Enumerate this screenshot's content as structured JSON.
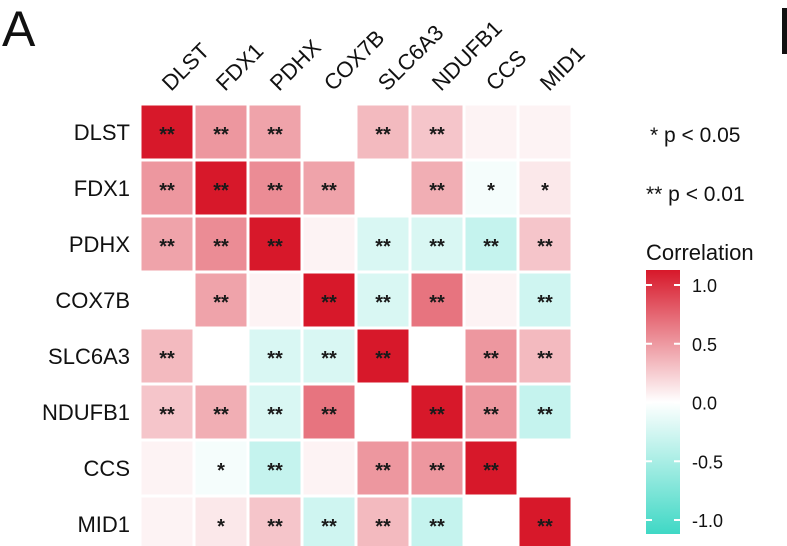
{
  "panel_label": "A",
  "chart_data": {
    "type": "heatmap",
    "title": "",
    "rows": [
      "DLST",
      "FDX1",
      "PDHX",
      "COX7B",
      "SLC6A3",
      "NDUFB1",
      "CCS",
      "MID1"
    ],
    "columns": [
      "DLST",
      "FDX1",
      "PDHX",
      "COX7B",
      "SLC6A3",
      "NDUFB1",
      "CCS",
      "MID1"
    ],
    "values": [
      [
        1.0,
        0.45,
        0.4,
        0.0,
        0.3,
        0.25,
        0.05,
        0.05
      ],
      [
        0.45,
        1.0,
        0.5,
        0.4,
        0.0,
        0.35,
        -0.05,
        0.1
      ],
      [
        0.4,
        0.5,
        1.0,
        0.05,
        -0.2,
        -0.2,
        -0.3,
        0.25
      ],
      [
        0.0,
        0.4,
        0.05,
        1.0,
        -0.2,
        0.6,
        0.05,
        -0.25
      ],
      [
        0.3,
        0.0,
        -0.2,
        -0.2,
        1.0,
        0.0,
        0.45,
        0.3
      ],
      [
        0.25,
        0.35,
        -0.2,
        0.6,
        0.0,
        1.0,
        0.45,
        -0.3
      ],
      [
        0.05,
        -0.05,
        -0.3,
        0.05,
        0.45,
        0.45,
        1.0,
        0.0
      ],
      [
        0.05,
        0.1,
        0.25,
        -0.25,
        0.3,
        -0.3,
        0.0,
        1.0
      ]
    ],
    "significance": [
      [
        "**",
        "**",
        "**",
        "",
        "**",
        "**",
        "",
        ""
      ],
      [
        "**",
        "**",
        "**",
        "**",
        "",
        "**",
        "*",
        "*"
      ],
      [
        "**",
        "**",
        "**",
        "",
        "**",
        "**",
        "**",
        "**"
      ],
      [
        "",
        "**",
        "",
        "**",
        "**",
        "**",
        "",
        "**"
      ],
      [
        "**",
        "",
        "**",
        "**",
        "**",
        "",
        "**",
        "**"
      ],
      [
        "**",
        "**",
        "**",
        "**",
        "",
        "**",
        "**",
        "**"
      ],
      [
        "",
        "*",
        "**",
        "",
        "**",
        "**",
        "**",
        ""
      ],
      [
        "",
        "*",
        "**",
        "**",
        "**",
        "**",
        "",
        "**"
      ]
    ],
    "legend": {
      "sig_note_1": "* p < 0.05",
      "sig_note_2": "** p < 0.01",
      "title": "Correlation",
      "ticks": [
        "1.0",
        "0.5",
        "0.0",
        "-0.5",
        "-1.0"
      ],
      "range": [
        -1.0,
        1.0
      ],
      "placement": "right"
    },
    "colors": {
      "high": "#d7182a",
      "mid": "#ffffff",
      "low": "#3fd8c5",
      "grid_line": "#ffffff",
      "star": "#1a1a1a"
    }
  }
}
